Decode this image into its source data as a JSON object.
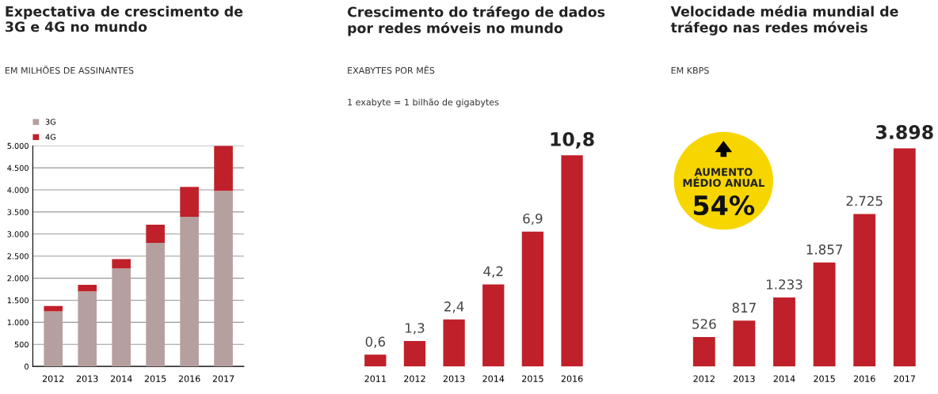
{
  "chart_data": [
    {
      "type": "bar",
      "title": "Expectativa de crescimento de\n3G e 4G no mundo",
      "subtitle": "EM MILHÕES DE ASSINANTES",
      "categories": [
        "2012",
        "2013",
        "2014",
        "2015",
        "2016",
        "2017"
      ],
      "stacked": true,
      "series": [
        {
          "name": "3G",
          "color": "#b5a09f",
          "values": [
            1250,
            1700,
            2220,
            2800,
            3390,
            3980
          ]
        },
        {
          "name": "4G",
          "color": "#c0202a",
          "values": [
            120,
            150,
            210,
            410,
            680,
            1020
          ]
        }
      ],
      "ylim": [
        0,
        5000
      ],
      "yticks": [
        0,
        {
          "value": 500,
          "label": "500"
        },
        {
          "value": 1000,
          "label": "1.000"
        },
        {
          "value": 1500,
          "label": "1.500"
        },
        {
          "value": 2000,
          "label": "2.000"
        },
        {
          "value": 2500,
          "label": "2.500"
        },
        {
          "value": 3000,
          "label": "3.000"
        },
        {
          "value": 3500,
          "label": "3.500"
        },
        {
          "value": 4000,
          "label": "4.000"
        },
        {
          "value": 4500,
          "label": "4.500"
        },
        {
          "value": 5000,
          "label": "5.000"
        }
      ],
      "grid": "y",
      "legend": "top left"
    },
    {
      "type": "bar",
      "title": "Crescimento do tráfego de dados\npor redes móveis no mundo",
      "subtitle": "EXABYTES POR MÊS",
      "annotations": [
        "1 exabyte = 1 bilhão de gigabytes"
      ],
      "categories": [
        "2011",
        "2012",
        "2013",
        "2014",
        "2015",
        "2016"
      ],
      "series": [
        {
          "color": "#c0202a",
          "values": [
            0.6,
            1.3,
            2.4,
            4.2,
            6.9,
            10.8
          ],
          "value_labels": [
            "0,6",
            "1,3",
            "2,4",
            "4,2",
            "6,9",
            "10,8"
          ]
        }
      ]
    },
    {
      "type": "bar",
      "title": "Velocidade média mundial de\ntráfego nas redes móveis",
      "subtitle": "EM KBPS",
      "annotations": [
        "AUMENTO\nMÉDIO ANUAL",
        "54%"
      ],
      "categories": [
        "2012",
        "2013",
        "2014",
        "2015",
        "2016",
        "2017"
      ],
      "series": [
        {
          "color": "#c0202a",
          "values": [
            526,
            817,
            1233,
            1857,
            2725,
            3898
          ],
          "value_labels": [
            "526",
            "817",
            "1.233",
            "1.857",
            "2.725",
            "3.898"
          ]
        }
      ]
    }
  ]
}
